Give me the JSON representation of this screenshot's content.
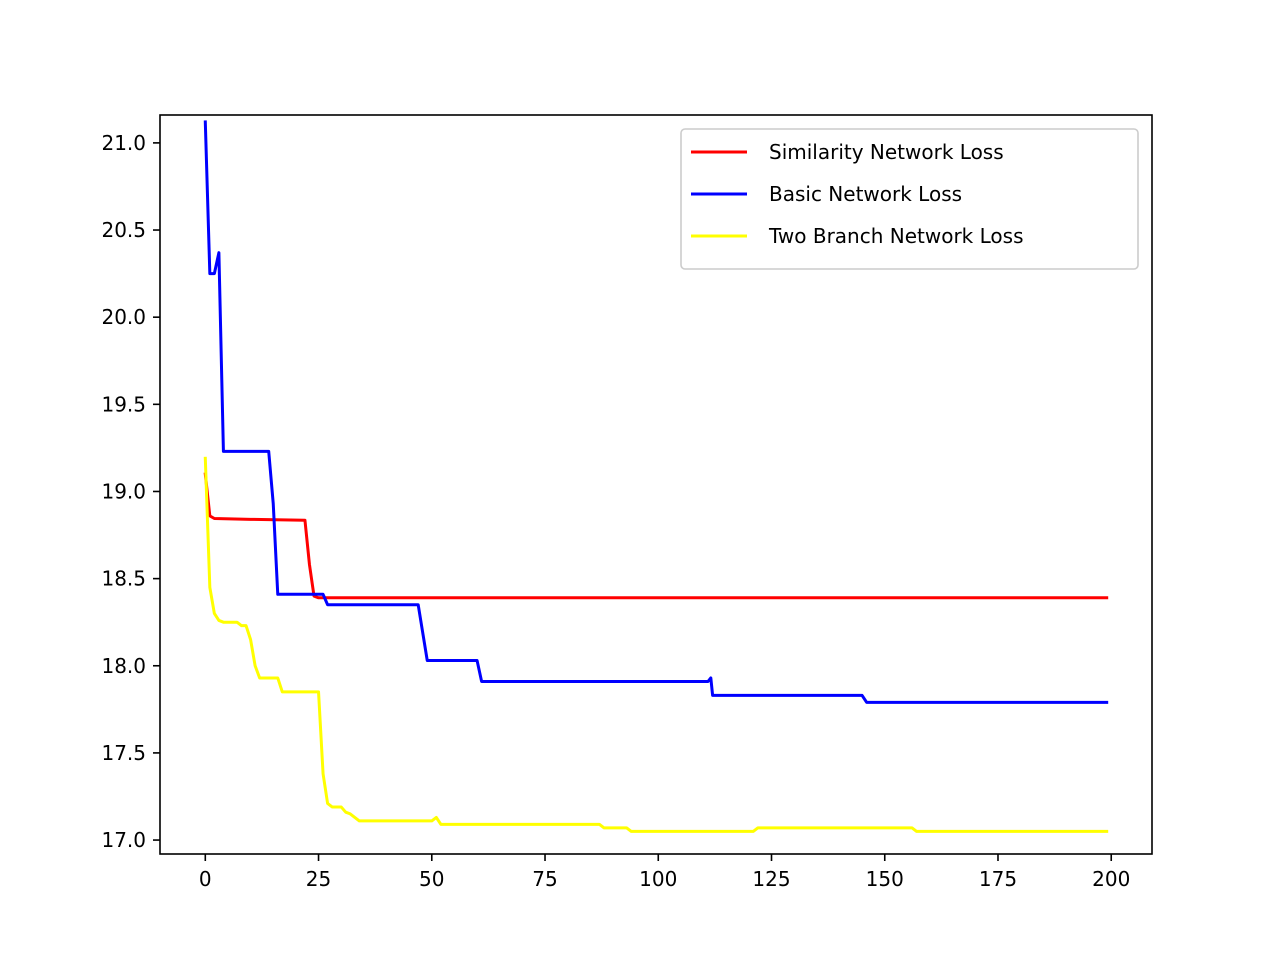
{
  "chart_data": {
    "type": "line",
    "title": "",
    "xlabel": "",
    "ylabel": "",
    "xlim": [
      -10,
      209
    ],
    "ylim": [
      16.92,
      21.16
    ],
    "xticks": [
      0,
      25,
      50,
      75,
      100,
      125,
      150,
      175,
      200
    ],
    "yticks": [
      17.0,
      17.5,
      18.0,
      18.5,
      19.0,
      19.5,
      20.0,
      20.5,
      21.0
    ],
    "grid": false,
    "legend_position": "top-right",
    "series": [
      {
        "name": "Similarity Network Loss",
        "color": "#ff0000",
        "points": [
          [
            0,
            19.1
          ],
          [
            1,
            18.86
          ],
          [
            2,
            18.845
          ],
          [
            10,
            18.84
          ],
          [
            22,
            18.835
          ],
          [
            23,
            18.58
          ],
          [
            24,
            18.4
          ],
          [
            25,
            18.39
          ],
          [
            199,
            18.39
          ]
        ]
      },
      {
        "name": "Basic Network Loss",
        "color": "#0000ff",
        "points": [
          [
            0,
            21.12
          ],
          [
            1,
            20.25
          ],
          [
            2,
            20.25
          ],
          [
            3,
            20.37
          ],
          [
            4,
            19.23
          ],
          [
            14,
            19.23
          ],
          [
            15,
            18.93
          ],
          [
            16,
            18.41
          ],
          [
            26,
            18.41
          ],
          [
            27,
            18.35
          ],
          [
            47,
            18.35
          ],
          [
            49,
            18.03
          ],
          [
            60,
            18.03
          ],
          [
            61,
            17.91
          ],
          [
            111,
            17.91
          ],
          [
            111.6,
            17.93
          ],
          [
            112,
            17.83
          ],
          [
            145,
            17.83
          ],
          [
            146,
            17.79
          ],
          [
            199,
            17.79
          ]
        ]
      },
      {
        "name": "Two Branch Network Loss",
        "color": "#ffff00",
        "points": [
          [
            0,
            19.19
          ],
          [
            1,
            18.45
          ],
          [
            2,
            18.3
          ],
          [
            3,
            18.26
          ],
          [
            4,
            18.25
          ],
          [
            7,
            18.25
          ],
          [
            8,
            18.23
          ],
          [
            9,
            18.23
          ],
          [
            10,
            18.15
          ],
          [
            11,
            18.0
          ],
          [
            12,
            17.93
          ],
          [
            16,
            17.93
          ],
          [
            17,
            17.85
          ],
          [
            25,
            17.85
          ],
          [
            26,
            17.38
          ],
          [
            27,
            17.21
          ],
          [
            28,
            17.19
          ],
          [
            30,
            17.19
          ],
          [
            31,
            17.16
          ],
          [
            32,
            17.15
          ],
          [
            34,
            17.11
          ],
          [
            50,
            17.11
          ],
          [
            51,
            17.13
          ],
          [
            52,
            17.09
          ],
          [
            87,
            17.09
          ],
          [
            88,
            17.07
          ],
          [
            93,
            17.07
          ],
          [
            94,
            17.05
          ],
          [
            121,
            17.05
          ],
          [
            122,
            17.07
          ],
          [
            156,
            17.07
          ],
          [
            157,
            17.05
          ],
          [
            199,
            17.05
          ]
        ]
      }
    ]
  }
}
